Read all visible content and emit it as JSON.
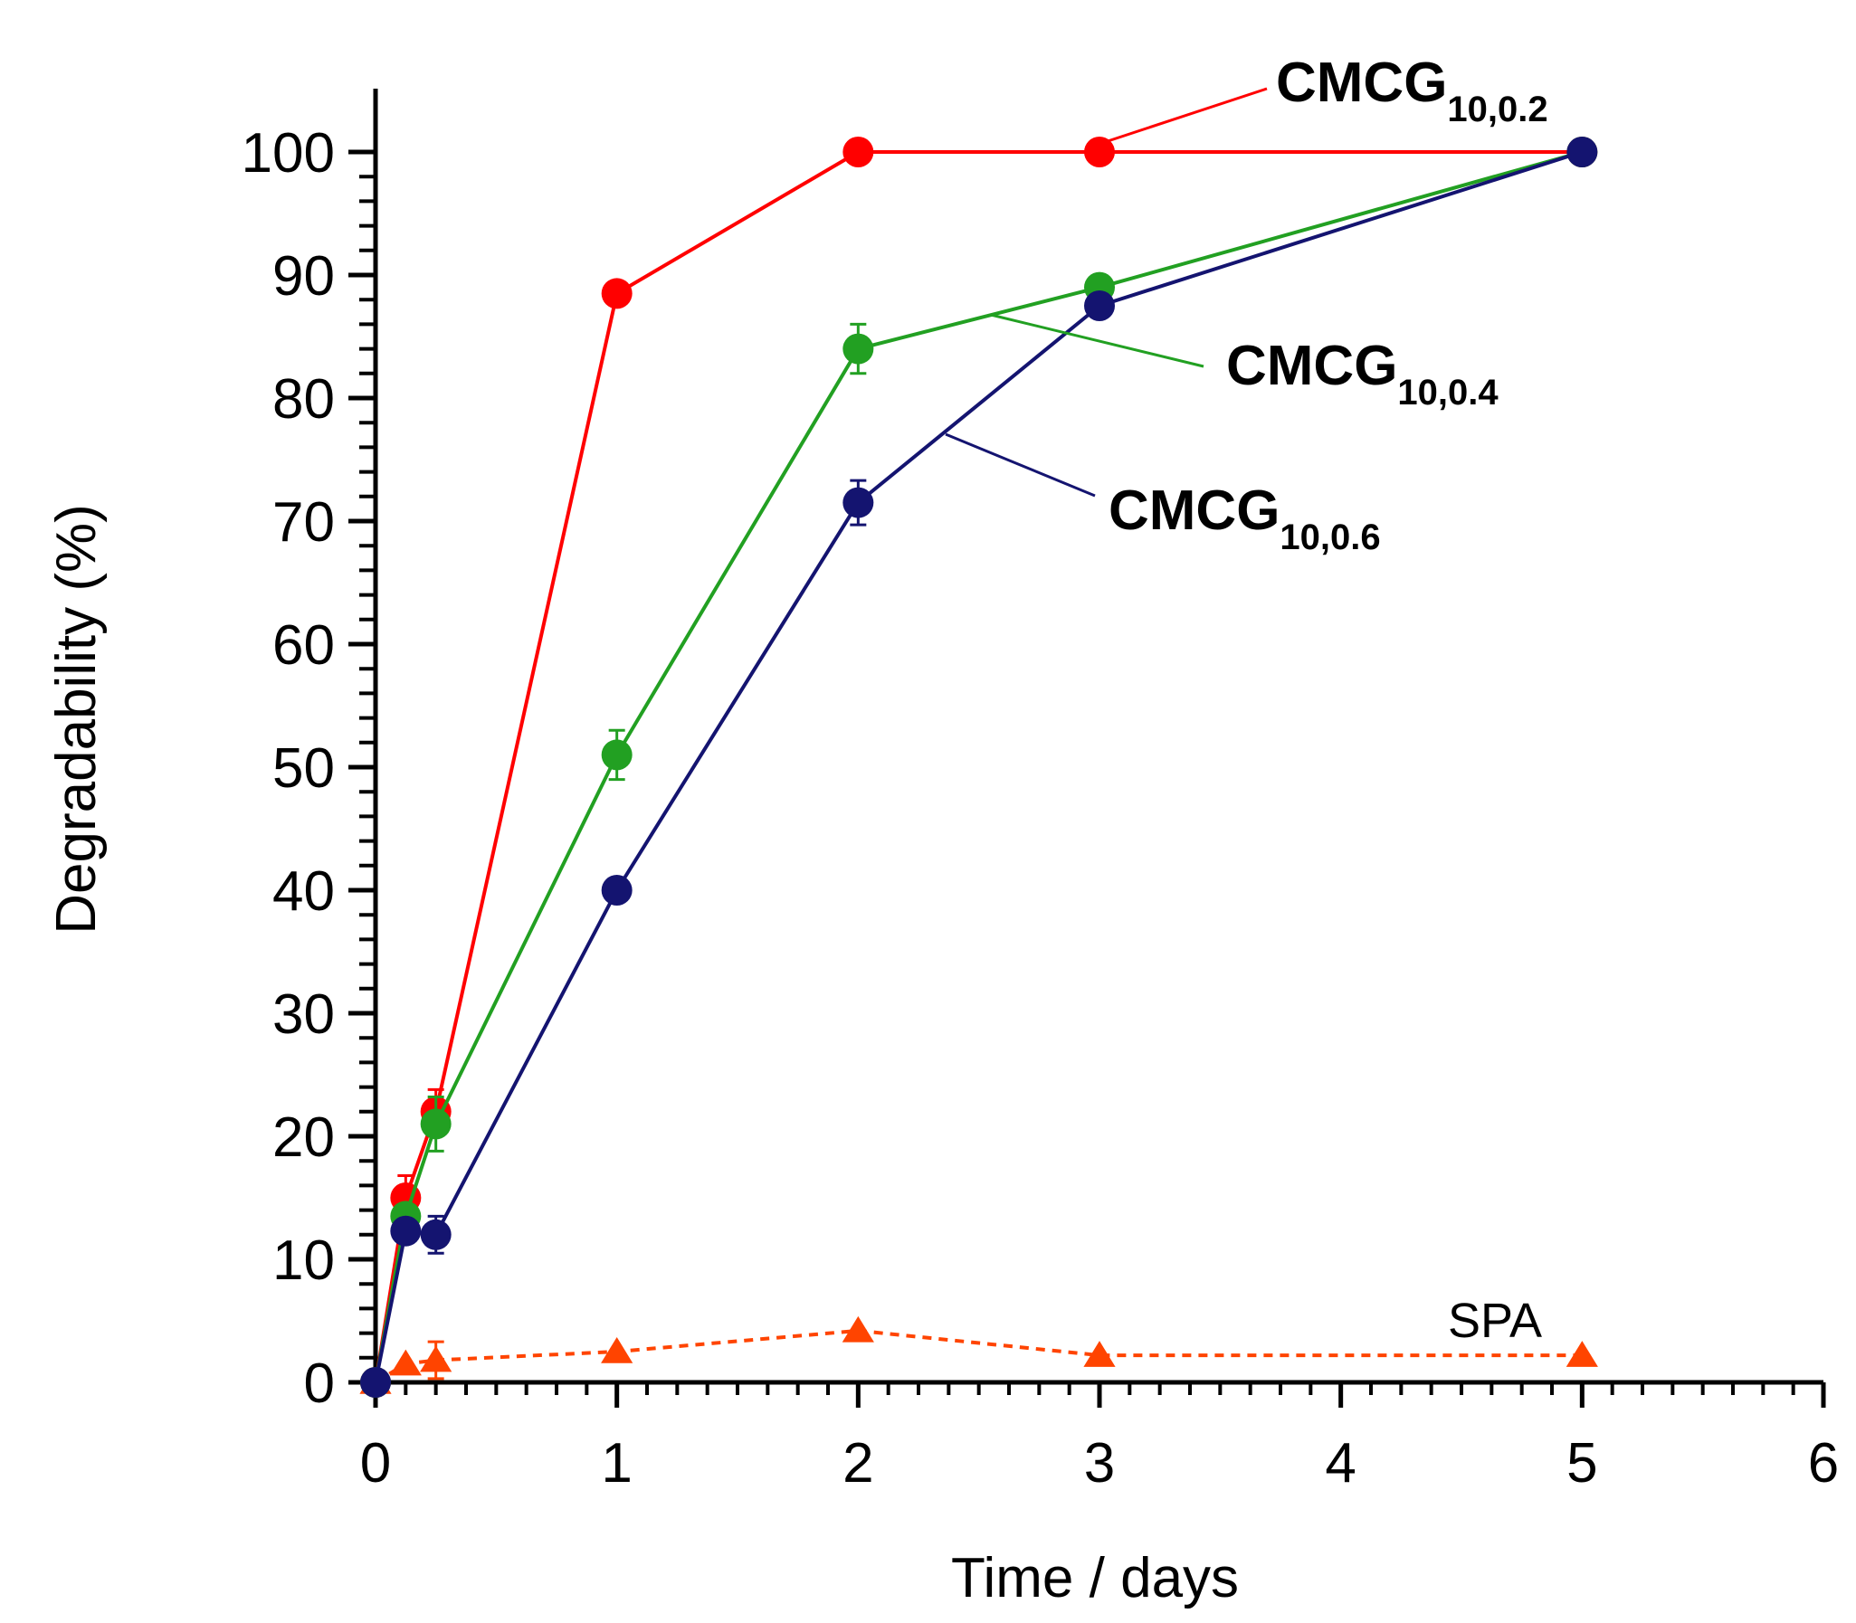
{
  "chart_data": {
    "type": "line",
    "title": "",
    "xlabel": "Time / days",
    "ylabel": "Degradability (%)",
    "xlim": [
      0,
      6
    ],
    "ylim": [
      0,
      100
    ],
    "xticks": [
      0,
      1,
      2,
      3,
      4,
      5,
      6
    ],
    "yticks": [
      0,
      10,
      20,
      30,
      40,
      50,
      60,
      70,
      80,
      90,
      100
    ],
    "x_minor_step": 0.125,
    "y_minor_step": 2,
    "grid": false,
    "series": [
      {
        "name": "CMCG10,0.2",
        "label_main": "CMCG",
        "label_sub": "10,0.2",
        "color": "#ff0000",
        "marker": "circle",
        "dashed": false,
        "x": [
          0,
          0.125,
          0.25,
          1,
          2,
          3,
          5
        ],
        "y": [
          0,
          15,
          22,
          88.5,
          100,
          100,
          100
        ],
        "err": [
          0,
          1.8,
          1.8,
          0,
          0,
          0,
          0
        ]
      },
      {
        "name": "CMCG10,0.4",
        "label_main": "CMCG",
        "label_sub": "10,0.4",
        "color": "#22a022",
        "marker": "circle",
        "dashed": false,
        "x": [
          0,
          0.125,
          0.25,
          1,
          2,
          3,
          5
        ],
        "y": [
          0,
          13.5,
          21,
          51,
          84,
          89,
          100
        ],
        "err": [
          0,
          0,
          2.2,
          2,
          2,
          0,
          0
        ]
      },
      {
        "name": "CMCG10,0.6",
        "label_main": "CMCG",
        "label_sub": "10,0.6",
        "color": "#141470",
        "marker": "circle",
        "dashed": false,
        "x": [
          0,
          0.125,
          0.25,
          1,
          2,
          3,
          5
        ],
        "y": [
          0,
          12.3,
          12,
          40,
          71.5,
          87.5,
          100
        ],
        "err": [
          0,
          0,
          1.5,
          0,
          1.8,
          0,
          0
        ]
      },
      {
        "name": "SPA",
        "label_main": "SPA",
        "label_sub": "",
        "color": "#ff4400",
        "marker": "triangle",
        "dashed": true,
        "x": [
          0,
          0.125,
          0.25,
          1,
          2,
          3,
          5
        ],
        "y": [
          0,
          1.5,
          1.8,
          2.5,
          4.2,
          2.2,
          2.2
        ],
        "err": [
          0,
          0,
          1.5,
          0,
          0,
          0,
          0
        ]
      }
    ]
  }
}
